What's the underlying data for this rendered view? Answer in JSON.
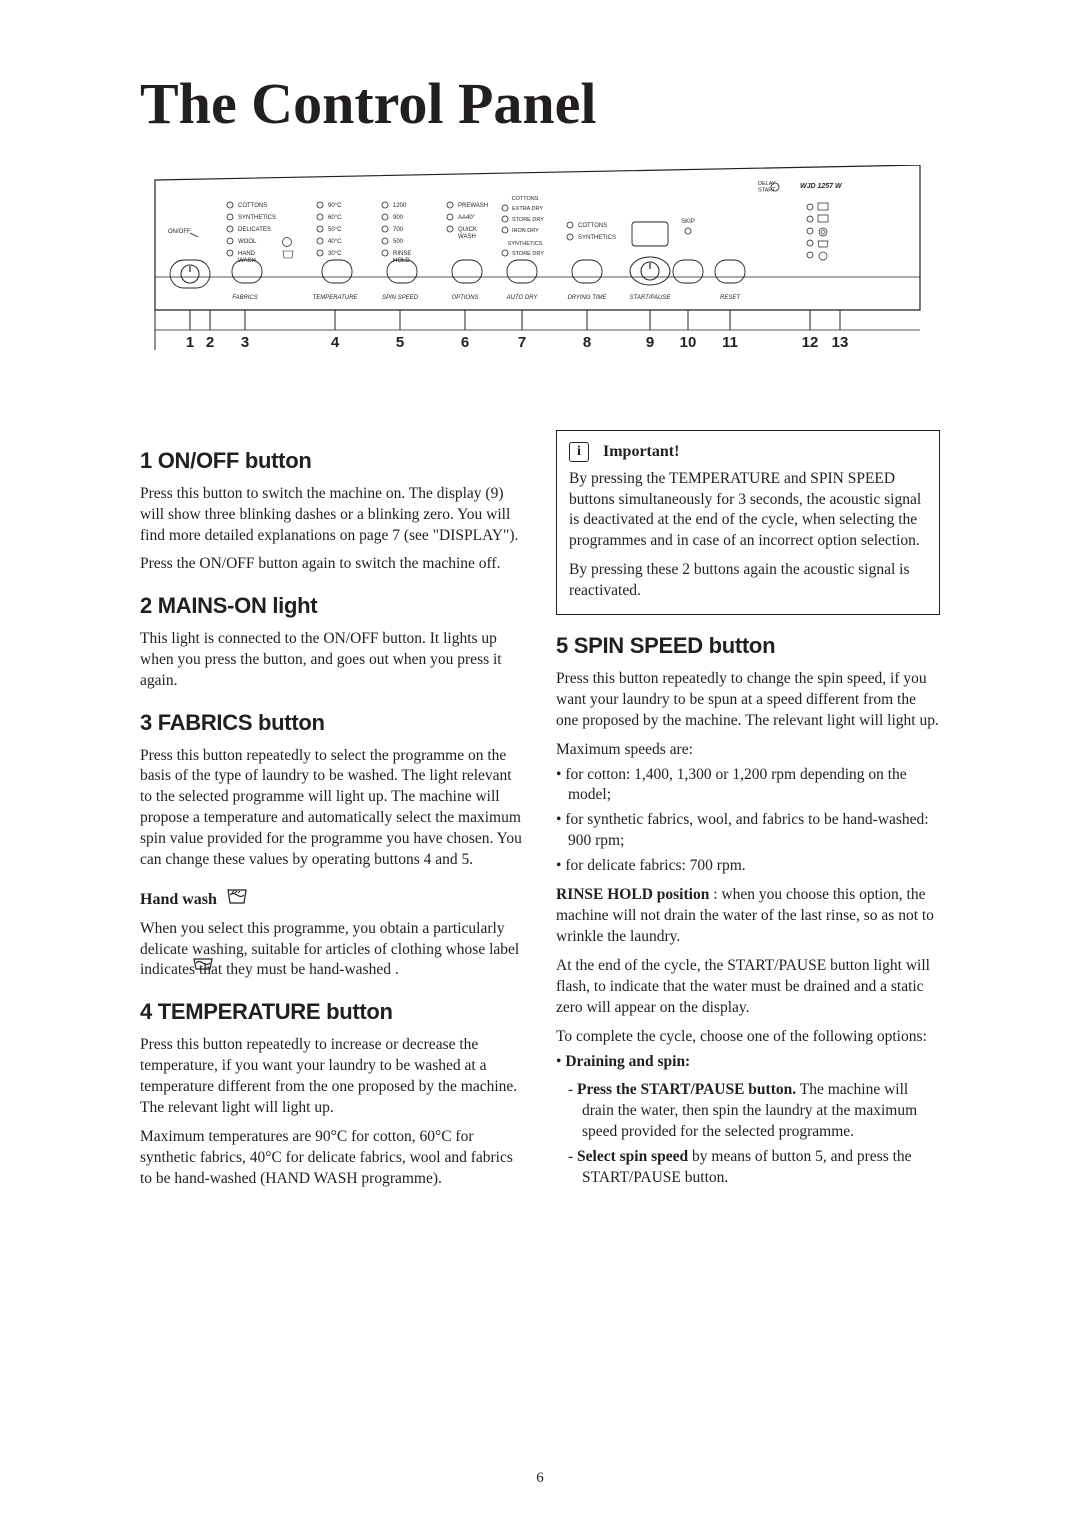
{
  "page": {
    "title": "The Control Panel",
    "number": "6"
  },
  "diagram": {
    "model": "WJD 1257 W",
    "delay_start": "DELAY\nSTART",
    "onoff": "ON/OFF",
    "fabrics_label": "FABRICS",
    "temperature_label": "TEMPERATURE",
    "spin_label": "SPIN SPEED",
    "options_label": "OPTIONS",
    "auto_dry_label": "AUTO DRY",
    "drying_time_label": "DRYING TIME",
    "start_pause_label": "START/PAUSE",
    "reset_label": "RESET",
    "skip_label": "SKIP",
    "fabrics": [
      "COTTONS",
      "SYNTHETICS",
      "DELICATES",
      "WOOL",
      "HAND\nWASH"
    ],
    "temperatures": [
      "90°C",
      "60°C",
      "50°C",
      "40°C",
      "30°C"
    ],
    "spins": [
      "1200",
      "900",
      "700",
      "500",
      "RINSE\nHOLD"
    ],
    "options": [
      "PREWASH",
      "AA40°",
      "QUICK\nWASH"
    ],
    "autodry_group1_label": "COTTONS",
    "autodry_group1": [
      "EXTRA DRY",
      "STORE DRY",
      "IRON DRY"
    ],
    "autodry_group2_label": "SYNTHETICS",
    "autodry_group2": [
      "STORE DRY"
    ],
    "drying_items": [
      "COTTONS",
      "SYNTHETICS"
    ],
    "callout_numbers": [
      "1",
      "2",
      "3",
      "4",
      "5",
      "6",
      "7",
      "8",
      "9",
      "10",
      "11",
      "12",
      "13"
    ],
    "colors": {
      "stroke": "#231f20",
      "fill": "#ffffff",
      "text": "#231f20",
      "callout": "#231f20"
    }
  },
  "sections": {
    "s1": {
      "heading": "1 ON/OFF button",
      "p1": "Press this button to switch the machine on. The display (9) will show three blinking dashes or a blinking zero. You will find more detailed explanations on page 7 (see \"DISPLAY\").",
      "p2": "Press the ON/OFF button again to switch the machine off."
    },
    "s2": {
      "heading": "2 MAINS-ON light",
      "p1": "This light is connected to the ON/OFF button. It lights up when you press the button, and goes out when you press it again."
    },
    "s3": {
      "heading": "3 FABRICS button",
      "p1": "Press this button repeatedly to select the programme on the basis of the type of laundry to be washed. The light relevant to the selected programme will light up. The machine will propose a temperature and automatically select the maximum spin value provided for the programme you have chosen. You can change these values by operating buttons 4 and 5.",
      "handwash_label": "Hand wash",
      "p2": "When you select this programme, you obtain a particularly delicate washing, suitable for articles of clothing whose label indicates that they must be hand-washed        ."
    },
    "s4": {
      "heading": "4 TEMPERATURE button",
      "p1": "Press this button repeatedly to increase or decrease the temperature, if you want your laundry to be washed at a temperature different from the one proposed by the machine. The relevant light will light up.",
      "p2": "Maximum temperatures are 90°C for cotton, 60°C for synthetic fabrics, 40°C for delicate fabrics, wool and fabrics to be hand-washed (HAND WASH programme)."
    },
    "important": {
      "label": "Important!",
      "p1": "By pressing the TEMPERATURE and SPIN SPEED buttons simultaneously for 3 seconds, the acoustic signal is deactivated at the end of the cycle, when selecting the programmes and in case of an incorrect option selection.",
      "p2": "By pressing these 2 buttons again the acoustic signal is reactivated."
    },
    "s5": {
      "heading": "5 SPIN SPEED button",
      "p1": "Press this button repeatedly to change the spin speed, if you want your laundry to be spun at a speed different from the one proposed by the machine. The relevant light will light up.",
      "p2": "Maximum speeds are:",
      "bullets": {
        "b1": "for cotton: 1,400, 1,300 or 1,200 rpm depending on the model;",
        "b2": "for synthetic fabrics, wool, and fabrics to be hand-washed: 900 rpm;",
        "b3": "for delicate fabrics: 700 rpm."
      },
      "rinse_hold_label": "RINSE HOLD position",
      "p3": " : when you choose this option, the machine will not drain the water of the last rinse, so as not to wrinkle the laundry.",
      "p4": "At the end of the cycle, the START/PAUSE button light will flash, to indicate that the water must be drained and a static zero will appear on the display.",
      "p5": "To complete the cycle, choose one of the following options:",
      "drain_label": "Draining and spin:",
      "dashes": {
        "d1a": "Press the START/PAUSE button.",
        "d1b": " The machine will drain the water, then spin the laundry at the maximum speed provided for the selected programme.",
        "d2a": "Select spin speed",
        "d2b": " by means of button 5, and press the START/PAUSE button."
      }
    }
  }
}
